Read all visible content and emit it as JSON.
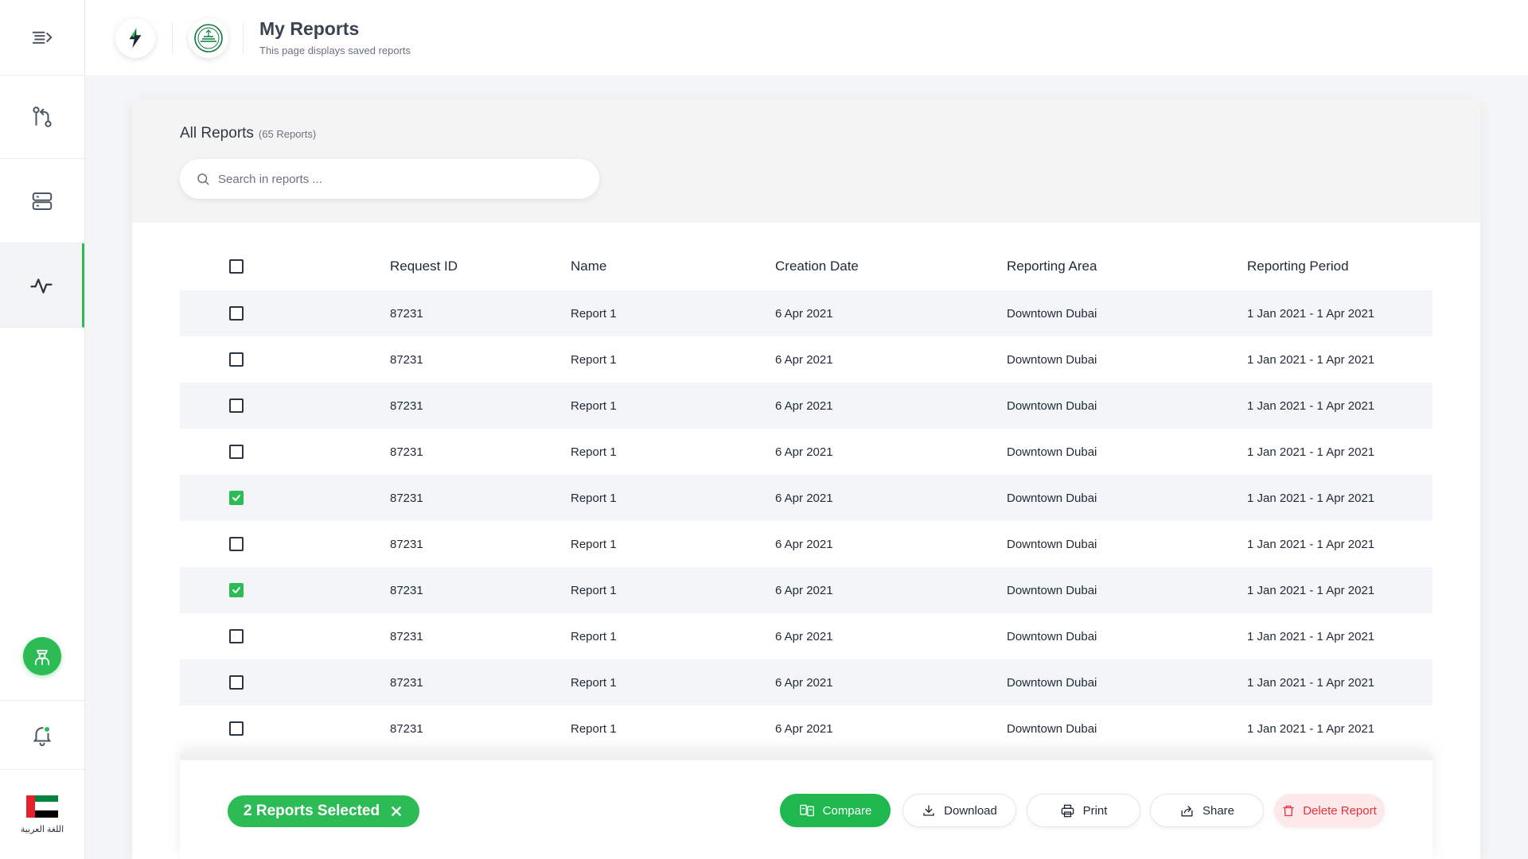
{
  "header": {
    "title": "My Reports",
    "subtitle": "This page displays saved reports"
  },
  "sidebar": {
    "items": [
      {
        "icon": "menu-collapse-icon"
      },
      {
        "icon": "git-compare-icon"
      },
      {
        "icon": "server-stack-icon"
      },
      {
        "icon": "activity-pulse-icon",
        "active": true
      }
    ],
    "language_label": "اللغة العربية"
  },
  "reports": {
    "heading": "All Reports",
    "count_label": "(65 Reports)",
    "search_placeholder": "Search in reports ...",
    "columns": [
      "Request ID",
      "Name",
      "Creation Date",
      "Reporting Area",
      "Reporting Period"
    ],
    "rows": [
      {
        "id": "87231",
        "name": "Report 1",
        "date": "6 Apr 2021",
        "area": "Downtown Dubai",
        "period": "1 Jan 2021 - 1 Apr 2021",
        "checked": false
      },
      {
        "id": "87231",
        "name": "Report 1",
        "date": "6 Apr 2021",
        "area": "Downtown Dubai",
        "period": "1 Jan 2021 - 1 Apr 2021",
        "checked": false
      },
      {
        "id": "87231",
        "name": "Report 1",
        "date": "6 Apr 2021",
        "area": "Downtown Dubai",
        "period": "1 Jan 2021 - 1 Apr 2021",
        "checked": false
      },
      {
        "id": "87231",
        "name": "Report 1",
        "date": "6 Apr 2021",
        "area": "Downtown Dubai",
        "period": "1 Jan 2021 - 1 Apr 2021",
        "checked": false
      },
      {
        "id": "87231",
        "name": "Report 1",
        "date": "6 Apr 2021",
        "area": "Downtown Dubai",
        "period": "1 Jan 2021 - 1 Apr 2021",
        "checked": true
      },
      {
        "id": "87231",
        "name": "Report 1",
        "date": "6 Apr 2021",
        "area": "Downtown Dubai",
        "period": "1 Jan 2021 - 1 Apr 2021",
        "checked": false
      },
      {
        "id": "87231",
        "name": "Report 1",
        "date": "6 Apr 2021",
        "area": "Downtown Dubai",
        "period": "1 Jan 2021 - 1 Apr 2021",
        "checked": true
      },
      {
        "id": "87231",
        "name": "Report 1",
        "date": "6 Apr 2021",
        "area": "Downtown Dubai",
        "period": "1 Jan 2021 - 1 Apr 2021",
        "checked": false
      },
      {
        "id": "87231",
        "name": "Report 1",
        "date": "6 Apr 2021",
        "area": "Downtown Dubai",
        "period": "1 Jan 2021 - 1 Apr 2021",
        "checked": false
      },
      {
        "id": "87231",
        "name": "Report 1",
        "date": "6 Apr 2021",
        "area": "Downtown Dubai",
        "period": "1 Jan 2021 - 1 Apr 2021",
        "checked": false
      }
    ]
  },
  "actions": {
    "selected_label": "2 Reports Selected",
    "compare": "Compare",
    "download": "Download",
    "print": "Print",
    "share": "Share",
    "delete": "Delete Report"
  },
  "colors": {
    "accent": "#2dbb55",
    "danger": "#e5323c",
    "danger_bg": "#fde9ea",
    "uae_red": "#e4212b",
    "uae_green": "#00843d",
    "uae_black": "#000000"
  }
}
